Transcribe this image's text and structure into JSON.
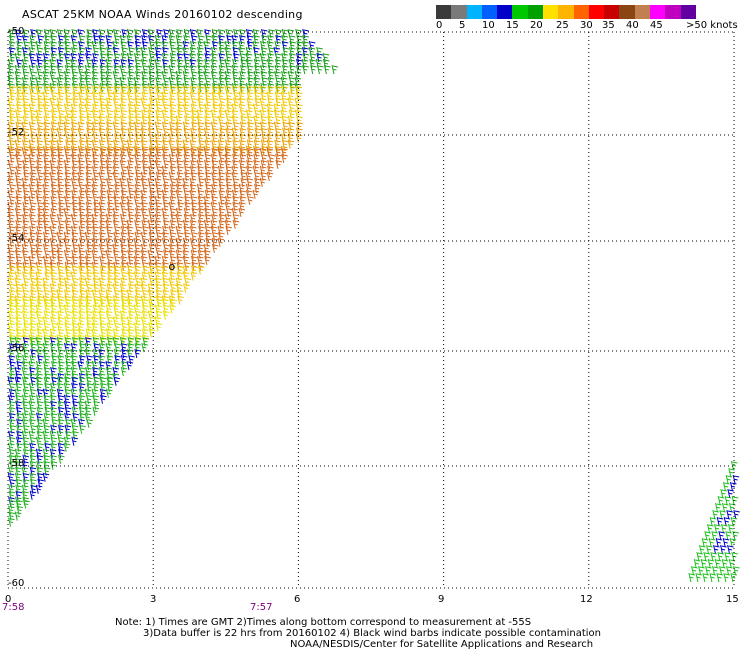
{
  "title": "ASCAT 25KM NOAA Winds 20160102 descending",
  "colorbar": {
    "colors": [
      "#3a3a3a",
      "#7a7a7a",
      "#00b4ff",
      "#0060ff",
      "#0000c8",
      "#00c800",
      "#00a000",
      "#ffe000",
      "#ffb400",
      "#ff6400",
      "#ff0000",
      "#c80000",
      "#8b4513",
      "#c08050",
      "#ff00ff",
      "#c000c0",
      "#6000a0"
    ],
    "labels": [
      "0",
      "5",
      "10",
      "15",
      "20",
      "25",
      "30",
      "35",
      "40",
      "45",
      ">50 knots"
    ]
  },
  "axes": {
    "lat_labels": [
      "-50",
      "-52",
      "-54",
      "-56",
      "-58",
      "-60"
    ],
    "lon_labels": [
      "0",
      "3",
      "6",
      "9",
      "12",
      "15"
    ],
    "time_labels": [
      "7:58",
      "7:57"
    ],
    "grid": "dotted"
  },
  "notes": [
    "Note: 1) Times are GMT 2)Times along bottom correspond to measurement at -55S",
    "3)Data buffer is 22 hrs from 20160102 4) Black wind barbs indicate possible contamination",
    "NOAA/NESDIS/Center for Satellite Applications and Research"
  ],
  "map": {
    "swaths": [
      {
        "name": "west-swath",
        "bands": [
          {
            "lat_from": -50,
            "lat_to": -50.7,
            "color": "#1a9e1a",
            "mix": "#0000c8"
          },
          {
            "lat_from": -50.7,
            "lat_to": -51.1,
            "color": "#1a9e1a"
          },
          {
            "lat_from": -51.1,
            "lat_to": -51.8,
            "color": "#f0c800"
          },
          {
            "lat_from": -51.8,
            "lat_to": -52.3,
            "color": "#e8a000"
          },
          {
            "lat_from": -52.3,
            "lat_to": -54.5,
            "color": "#d2691e"
          },
          {
            "lat_from": -54.5,
            "lat_to": -55.1,
            "color": "#f0c800"
          },
          {
            "lat_from": -55.1,
            "lat_to": -55.8,
            "color": "#e8e000"
          },
          {
            "lat_from": -55.8,
            "lat_to": -56.5,
            "color": "#20b020",
            "mix": "#0000c8"
          },
          {
            "lat_from": -56.5,
            "lat_to": -58.6,
            "color": "#20b020",
            "mix": "#0000c8"
          },
          {
            "lat_from": -58.6,
            "lat_to": -59.2,
            "color": "#20b020"
          }
        ]
      },
      {
        "name": "east-swath",
        "bands": [
          {
            "lat_from": -58,
            "lat_to": -60,
            "color": "#20c020",
            "mix": "#0000c8"
          }
        ]
      }
    ],
    "marker": {
      "label": "o",
      "lon": 3.4,
      "lat": -54.45
    }
  }
}
